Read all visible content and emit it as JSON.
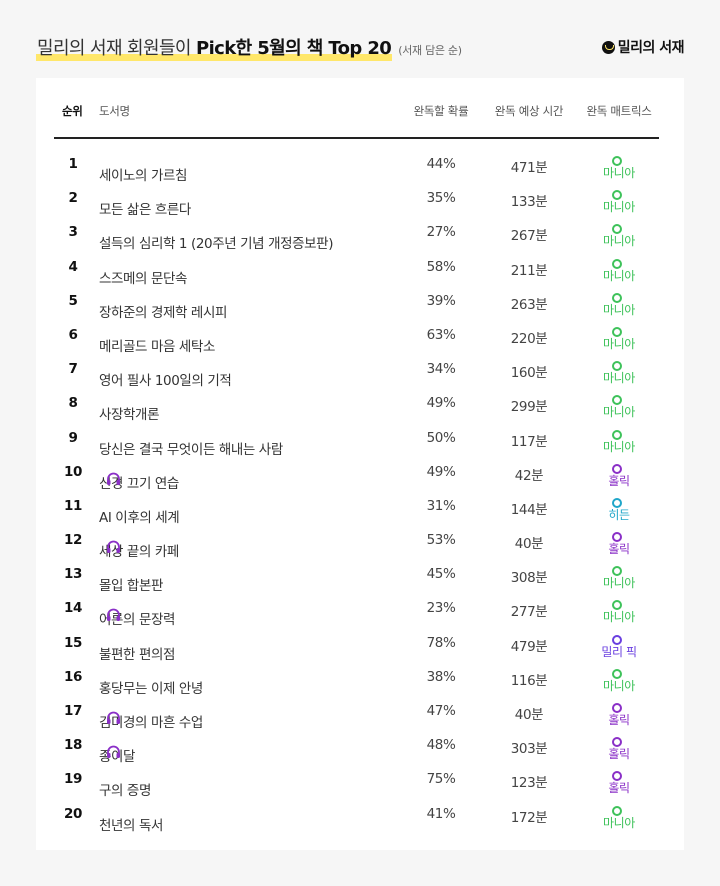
{
  "header": {
    "title_prefix": "밀리의 서재 회원들이",
    "title_bold": "Pick한 5월의 책 Top 20",
    "subtitle": "(서재 담은 순)",
    "brand": "밀리의 서재"
  },
  "table": {
    "columns": {
      "rank": "순위",
      "title": "도서명",
      "rate": "완독할 확률",
      "time": "완독 예상 시간",
      "matrix": "완독 매트릭스"
    },
    "matrix_colors": {
      "마니아": "#3ec25a",
      "홀릭": "#8a2fc7",
      "히든": "#1fa6c9",
      "밀리 픽": "#6a3fe0"
    },
    "rows": [
      {
        "rank": "1",
        "title": "세이노의 가르침",
        "audio": false,
        "rate": "44%",
        "time": "471분",
        "matrix": "마니아",
        "color": "#3ec25a"
      },
      {
        "rank": "2",
        "title": "모든 삶은 흐른다",
        "audio": false,
        "rate": "35%",
        "time": "133분",
        "matrix": "마니아",
        "color": "#3ec25a"
      },
      {
        "rank": "3",
        "title": "설득의 심리학 1 (20주년 기념 개정증보판)",
        "audio": false,
        "rate": "27%",
        "time": "267분",
        "matrix": "마니아",
        "color": "#3ec25a"
      },
      {
        "rank": "4",
        "title": "스즈메의 문단속",
        "audio": false,
        "rate": "58%",
        "time": "211분",
        "matrix": "마니아",
        "color": "#3ec25a"
      },
      {
        "rank": "5",
        "title": "장하준의 경제학 레시피",
        "audio": false,
        "rate": "39%",
        "time": "263분",
        "matrix": "마니아",
        "color": "#3ec25a"
      },
      {
        "rank": "6",
        "title": "메리골드 마음 세탁소",
        "audio": false,
        "rate": "63%",
        "time": "220분",
        "matrix": "마니아",
        "color": "#3ec25a"
      },
      {
        "rank": "7",
        "title": "영어 필사 100일의 기적",
        "audio": false,
        "rate": "34%",
        "time": "160분",
        "matrix": "마니아",
        "color": "#3ec25a"
      },
      {
        "rank": "8",
        "title": "사장학개론",
        "audio": false,
        "rate": "49%",
        "time": "299분",
        "matrix": "마니아",
        "color": "#3ec25a"
      },
      {
        "rank": "9",
        "title": "당신은 결국 무엇이든 해내는 사람",
        "audio": false,
        "rate": "50%",
        "time": "117분",
        "matrix": "마니아",
        "color": "#3ec25a"
      },
      {
        "rank": "10",
        "title": "신경 끄기 연습",
        "audio": true,
        "rate": "49%",
        "time": "42분",
        "matrix": "홀릭",
        "color": "#8a2fc7"
      },
      {
        "rank": "11",
        "title": "AI 이후의 세계",
        "audio": false,
        "rate": "31%",
        "time": "144분",
        "matrix": "히든",
        "color": "#1fa6c9"
      },
      {
        "rank": "12",
        "title": "세상 끝의 카페",
        "audio": true,
        "rate": "53%",
        "time": "40분",
        "matrix": "홀릭",
        "color": "#8a2fc7"
      },
      {
        "rank": "13",
        "title": "몰입 합본판",
        "audio": false,
        "rate": "45%",
        "time": "308분",
        "matrix": "마니아",
        "color": "#3ec25a"
      },
      {
        "rank": "14",
        "title": "어른의 문장력",
        "audio": true,
        "rate": "23%",
        "time": "277분",
        "matrix": "마니아",
        "color": "#3ec25a"
      },
      {
        "rank": "15",
        "title": "불편한 편의점",
        "audio": false,
        "rate": "78%",
        "time": "479분",
        "matrix": "밀리 픽",
        "color": "#6a3fe0"
      },
      {
        "rank": "16",
        "title": "홍당무는 이제 안녕",
        "audio": false,
        "rate": "38%",
        "time": "116분",
        "matrix": "마니아",
        "color": "#3ec25a"
      },
      {
        "rank": "17",
        "title": "김미경의 마흔 수업",
        "audio": true,
        "rate": "47%",
        "time": "40분",
        "matrix": "홀릭",
        "color": "#8a2fc7"
      },
      {
        "rank": "18",
        "title": "종이달",
        "audio": true,
        "rate": "48%",
        "time": "303분",
        "matrix": "홀릭",
        "color": "#8a2fc7"
      },
      {
        "rank": "19",
        "title": "구의 증명",
        "audio": false,
        "rate": "75%",
        "time": "123분",
        "matrix": "홀릭",
        "color": "#8a2fc7"
      },
      {
        "rank": "20",
        "title": "천년의 독서",
        "audio": false,
        "rate": "41%",
        "time": "172분",
        "matrix": "마니아",
        "color": "#3ec25a"
      }
    ]
  },
  "icons": {
    "audio": "headphones-icon",
    "brand": "millie-logo-icon",
    "matrix": "ring-dot-icon"
  },
  "colors": {
    "highlight": "#ffe76a",
    "audio_icon": "#8a2fc7"
  }
}
